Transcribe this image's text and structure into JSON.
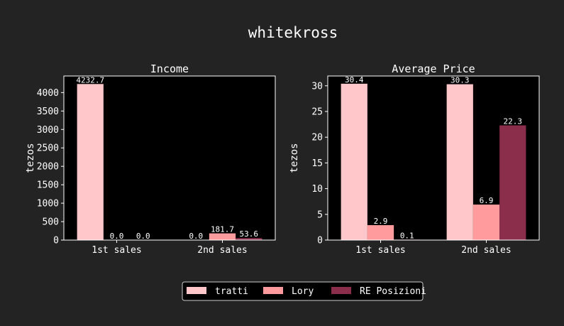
{
  "title": "whitekross",
  "colors": {
    "background": "#232323",
    "plot_bg": "#000000",
    "series": [
      "#ffc7c9",
      "#ff9b9d",
      "#8b2e4c"
    ]
  },
  "legend": {
    "placement": "bottom-center",
    "items": [
      "tratti",
      "Lory",
      "RE Posizioni"
    ]
  },
  "chart_data": [
    {
      "type": "bar",
      "title": "Income",
      "ylabel": "tezos",
      "xlabel": "",
      "categories": [
        "1st sales",
        "2nd sales"
      ],
      "ylim": [
        0,
        4450
      ],
      "yticks": [
        0,
        500,
        1000,
        1500,
        2000,
        2500,
        3000,
        3500,
        4000
      ],
      "series": [
        {
          "name": "tratti",
          "values": [
            4232.7,
            0.0
          ],
          "labels": [
            "4232.7",
            "0.0"
          ]
        },
        {
          "name": "Lory",
          "values": [
            0.0,
            181.7
          ],
          "labels": [
            "0.0",
            "181.7"
          ]
        },
        {
          "name": "RE Posizioni",
          "values": [
            0.0,
            53.6
          ],
          "labels": [
            "0.0",
            "53.6"
          ]
        }
      ],
      "grid": false
    },
    {
      "type": "bar",
      "title": "Average Price",
      "ylabel": "tezos",
      "xlabel": "",
      "categories": [
        "1st sales",
        "2nd sales"
      ],
      "ylim": [
        0,
        31.9
      ],
      "yticks": [
        0,
        5,
        10,
        15,
        20,
        25,
        30
      ],
      "series": [
        {
          "name": "tratti",
          "values": [
            30.4,
            30.3
          ],
          "labels": [
            "30.4",
            "30.3"
          ]
        },
        {
          "name": "Lory",
          "values": [
            2.9,
            6.9
          ],
          "labels": [
            "2.9",
            "6.9"
          ]
        },
        {
          "name": "RE Posizioni",
          "values": [
            0.1,
            22.3
          ],
          "labels": [
            "0.1",
            "22.3"
          ]
        }
      ],
      "grid": false
    }
  ]
}
